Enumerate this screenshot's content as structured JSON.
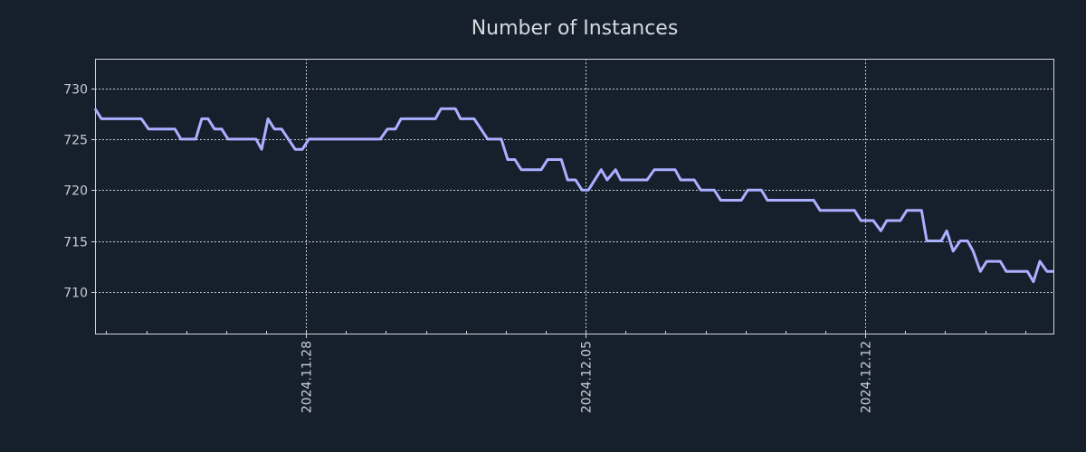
{
  "colors": {
    "background": "#16202d",
    "line": "#aab0ff",
    "axis": "#d0d3d8",
    "grid": "#c8ccd2"
  },
  "chart_data": {
    "type": "line",
    "title": "Number of Instances",
    "xlabel": "",
    "ylabel": "",
    "x_unit": "days relative to 2024.11.28",
    "xlim": [
      -5.28,
      18.71
    ],
    "ylim": [
      705.9,
      732.9
    ],
    "grid": true,
    "legend": "none",
    "x_ticks": [
      {
        "value": 0,
        "label": "2024.11.28"
      },
      {
        "value": 7,
        "label": "2024.12.05"
      },
      {
        "value": 14,
        "label": "2024.12.12"
      }
    ],
    "y_ticks": [
      {
        "value": 710,
        "label": "710"
      },
      {
        "value": 715,
        "label": "715"
      },
      {
        "value": 720,
        "label": "720"
      },
      {
        "value": 725,
        "label": "725"
      },
      {
        "value": 730,
        "label": "730"
      }
    ],
    "series": [
      {
        "name": "Number of Instances",
        "points": [
          [
            -5.28,
            728
          ],
          [
            -5.12,
            727
          ],
          [
            -4.12,
            727
          ],
          [
            -3.94,
            726
          ],
          [
            -3.28,
            726
          ],
          [
            -3.13,
            725
          ],
          [
            -2.76,
            725
          ],
          [
            -2.61,
            727
          ],
          [
            -2.45,
            727
          ],
          [
            -2.29,
            726
          ],
          [
            -2.11,
            726
          ],
          [
            -1.95,
            725
          ],
          [
            -1.25,
            725
          ],
          [
            -1.11,
            724
          ],
          [
            -0.95,
            727
          ],
          [
            -0.79,
            726
          ],
          [
            -0.61,
            726
          ],
          [
            -0.27,
            724
          ],
          [
            -0.09,
            724
          ],
          [
            0.07,
            725
          ],
          [
            1.86,
            725
          ],
          [
            2.04,
            726
          ],
          [
            2.24,
            726
          ],
          [
            2.38,
            727
          ],
          [
            3.24,
            727
          ],
          [
            3.38,
            728
          ],
          [
            3.74,
            728
          ],
          [
            3.87,
            727
          ],
          [
            4.21,
            727
          ],
          [
            4.55,
            725
          ],
          [
            4.89,
            725
          ],
          [
            5.05,
            723
          ],
          [
            5.23,
            723
          ],
          [
            5.39,
            722
          ],
          [
            5.89,
            722
          ],
          [
            6.05,
            723
          ],
          [
            6.39,
            723
          ],
          [
            6.55,
            721
          ],
          [
            6.75,
            721
          ],
          [
            6.91,
            720
          ],
          [
            7.07,
            720
          ],
          [
            7.39,
            722
          ],
          [
            7.54,
            721
          ],
          [
            7.75,
            722
          ],
          [
            7.88,
            721
          ],
          [
            8.54,
            721
          ],
          [
            8.72,
            722
          ],
          [
            9.24,
            722
          ],
          [
            9.38,
            721
          ],
          [
            9.72,
            721
          ],
          [
            9.88,
            720
          ],
          [
            10.22,
            720
          ],
          [
            10.38,
            719
          ],
          [
            10.9,
            719
          ],
          [
            11.06,
            720
          ],
          [
            11.4,
            720
          ],
          [
            11.55,
            719
          ],
          [
            12.71,
            719
          ],
          [
            12.87,
            718
          ],
          [
            13.73,
            718
          ],
          [
            13.89,
            717
          ],
          [
            14.2,
            717
          ],
          [
            14.39,
            716
          ],
          [
            14.54,
            717
          ],
          [
            14.88,
            717
          ],
          [
            15.04,
            718
          ],
          [
            15.41,
            718
          ],
          [
            15.54,
            715
          ],
          [
            15.9,
            715
          ],
          [
            16.04,
            716
          ],
          [
            16.2,
            714
          ],
          [
            16.38,
            715
          ],
          [
            16.56,
            715
          ],
          [
            16.7,
            714
          ],
          [
            16.88,
            712
          ],
          [
            17.04,
            713
          ],
          [
            17.38,
            713
          ],
          [
            17.53,
            712
          ],
          [
            18.06,
            712
          ],
          [
            18.21,
            711
          ],
          [
            18.37,
            713
          ],
          [
            18.55,
            712
          ],
          [
            18.71,
            712
          ]
        ]
      }
    ]
  }
}
